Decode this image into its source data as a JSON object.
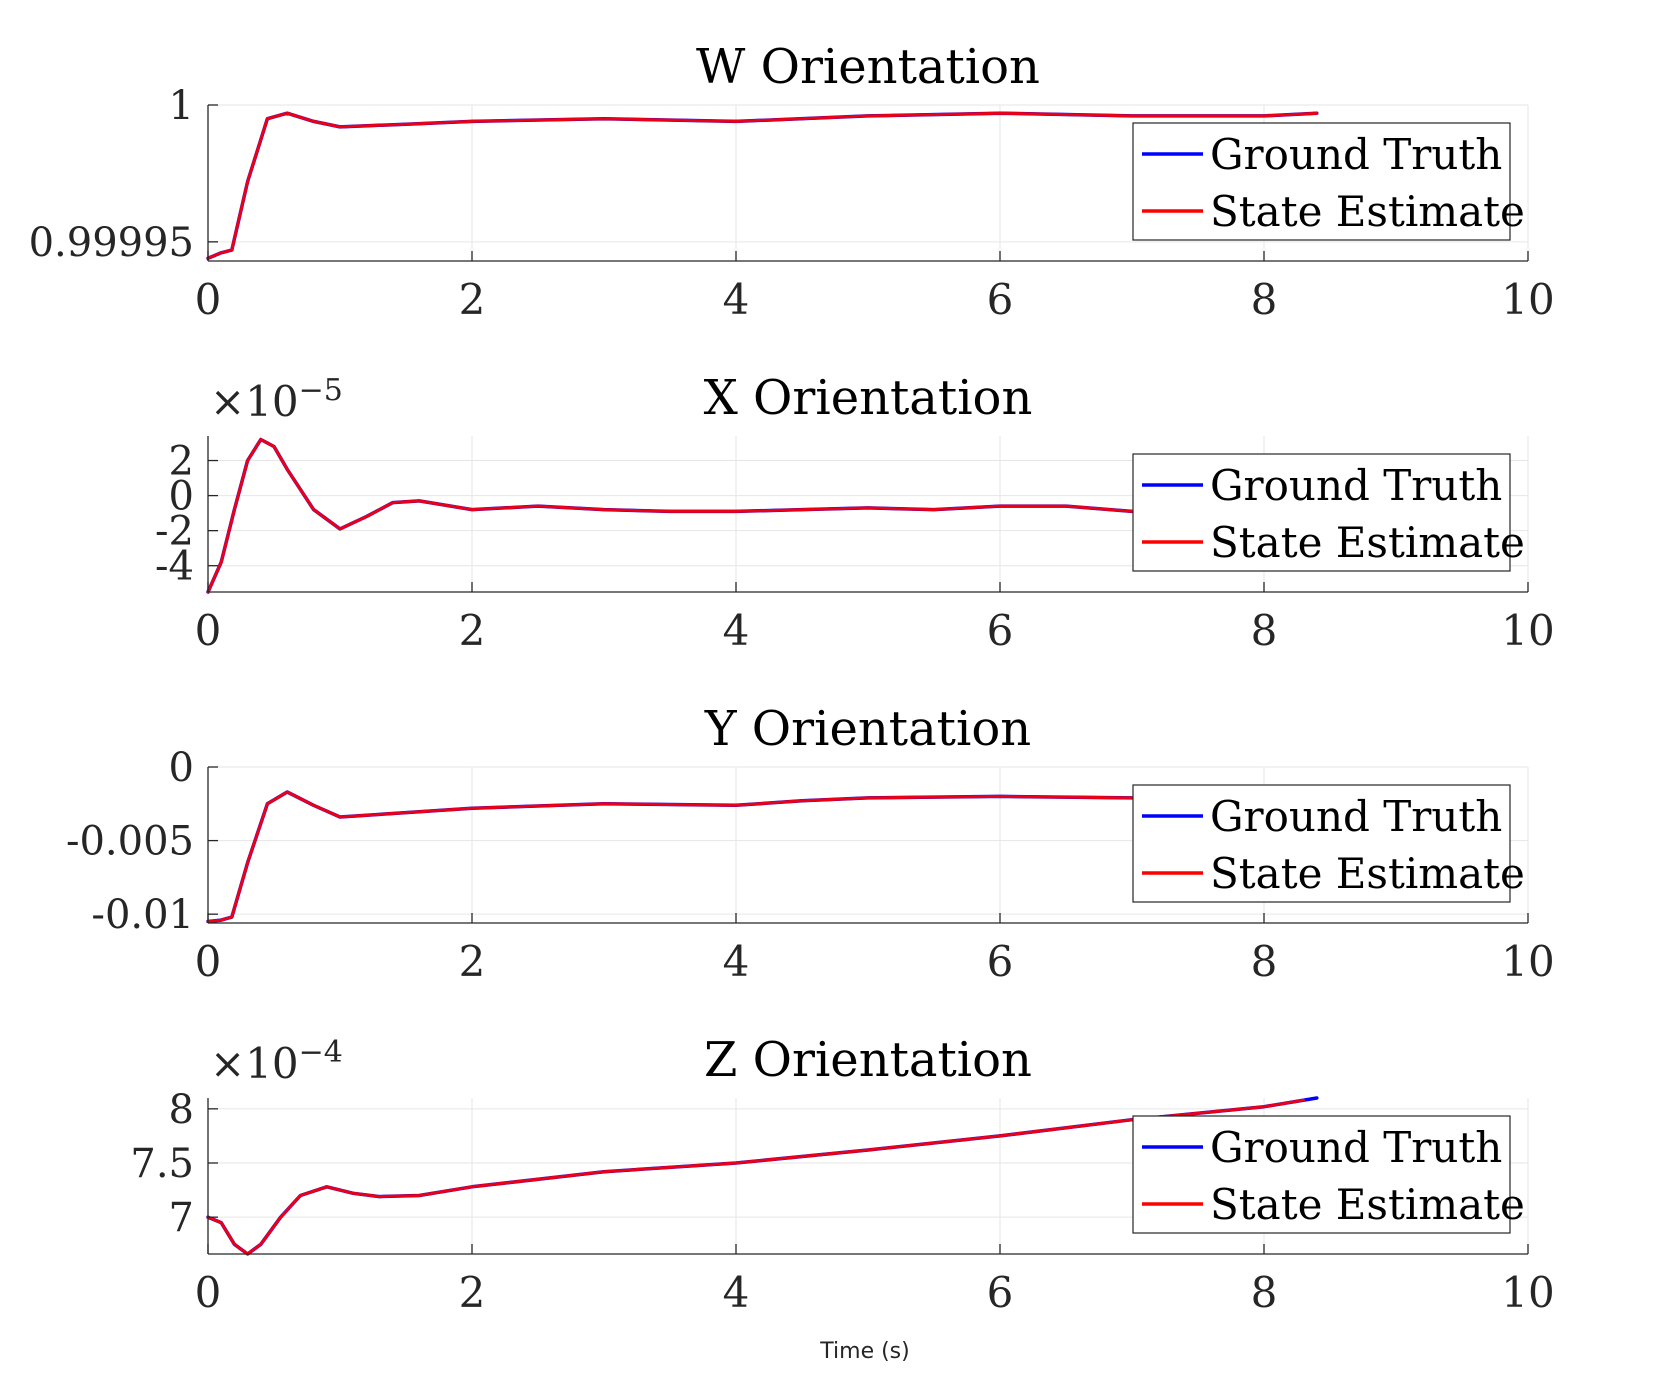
{
  "figure": {
    "xlabel": "Time (s)",
    "colors": {
      "ground_truth": "#0000ff",
      "state_estimate": "#ff0000",
      "axis": "#262626",
      "grid": "#e6e6e6",
      "text": "#262626"
    }
  },
  "chart_data": [
    {
      "type": "line",
      "title": "W Orientation",
      "xlabel": "",
      "ylabel": "",
      "exponent": "",
      "xlim": [
        0,
        10
      ],
      "ylim": [
        0.999943,
        1.0
      ],
      "x_ticks": [
        0,
        2,
        4,
        6,
        8,
        10
      ],
      "x_tick_labels": [
        "0",
        "2",
        "4",
        "6",
        "8",
        "10"
      ],
      "y_ticks": [
        0.99995,
        1.0
      ],
      "y_tick_labels": [
        "0.99995",
        "1"
      ],
      "grid": true,
      "legend_position": "top-right",
      "series": [
        {
          "name": "Ground Truth",
          "color": "#0000ff",
          "x": [
            0,
            0.1,
            0.18,
            0.3,
            0.45,
            0.6,
            0.8,
            1.0,
            1.5,
            2,
            3,
            4,
            5,
            6,
            7,
            8,
            8.4
          ],
          "y": [
            0.999944,
            0.999946,
            0.999947,
            0.999972,
            0.999995,
            0.999997,
            0.999994,
            0.999992,
            0.999993,
            0.999994,
            0.999995,
            0.999994,
            0.999996,
            0.999997,
            0.999996,
            0.999996,
            0.999997
          ]
        },
        {
          "name": "State Estimate",
          "color": "#ff0000",
          "x": [
            0,
            0.1,
            0.18,
            0.3,
            0.45,
            0.6,
            0.8,
            1.0,
            1.5,
            2,
            3,
            4,
            5,
            6,
            7,
            8,
            8.4
          ],
          "y": [
            0.999944,
            0.999946,
            0.999947,
            0.999972,
            0.999995,
            0.999997,
            0.999994,
            0.999992,
            0.999993,
            0.999994,
            0.999995,
            0.999994,
            0.999996,
            0.999997,
            0.999996,
            0.999996,
            0.999997
          ]
        }
      ]
    },
    {
      "type": "line",
      "title": "X Orientation",
      "xlabel": "",
      "ylabel": "",
      "exponent": "-5",
      "xlim": [
        0,
        10
      ],
      "ylim": [
        -5.5,
        3.4
      ],
      "x_ticks": [
        0,
        2,
        4,
        6,
        8,
        10
      ],
      "x_tick_labels": [
        "0",
        "2",
        "4",
        "6",
        "8",
        "10"
      ],
      "y_ticks": [
        -4,
        -2,
        0,
        2
      ],
      "y_tick_labels": [
        "-4",
        "-2",
        "0",
        "2"
      ],
      "grid": true,
      "legend_position": "top-right",
      "series": [
        {
          "name": "Ground Truth",
          "color": "#0000ff",
          "x": [
            0,
            0.1,
            0.2,
            0.3,
            0.4,
            0.5,
            0.6,
            0.8,
            1.0,
            1.2,
            1.4,
            1.6,
            2,
            2.5,
            3,
            3.5,
            4,
            4.5,
            5,
            5.5,
            6,
            6.5,
            7
          ],
          "y": [
            -5.5,
            -3.8,
            -0.8,
            2.0,
            3.2,
            2.8,
            1.5,
            -0.8,
            -1.9,
            -1.2,
            -0.4,
            -0.3,
            -0.8,
            -0.6,
            -0.8,
            -0.9,
            -0.9,
            -0.8,
            -0.7,
            -0.8,
            -0.6,
            -0.6,
            -0.9
          ]
        },
        {
          "name": "State Estimate",
          "color": "#ff0000",
          "x": [
            0,
            0.1,
            0.2,
            0.3,
            0.4,
            0.5,
            0.6,
            0.8,
            1.0,
            1.2,
            1.4,
            1.6,
            2,
            2.5,
            3,
            3.5,
            4,
            4.5,
            5,
            5.5,
            6,
            6.5,
            7
          ],
          "y": [
            -5.5,
            -3.8,
            -0.8,
            2.0,
            3.2,
            2.8,
            1.5,
            -0.8,
            -1.9,
            -1.2,
            -0.4,
            -0.3,
            -0.8,
            -0.6,
            -0.8,
            -0.9,
            -0.9,
            -0.8,
            -0.7,
            -0.8,
            -0.6,
            -0.6,
            -0.9
          ]
        }
      ]
    },
    {
      "type": "line",
      "title": "Y Orientation",
      "xlabel": "",
      "ylabel": "",
      "exponent": "",
      "xlim": [
        0,
        10
      ],
      "ylim": [
        -0.0106,
        0.0
      ],
      "x_ticks": [
        0,
        2,
        4,
        6,
        8,
        10
      ],
      "x_tick_labels": [
        "0",
        "2",
        "4",
        "6",
        "8",
        "10"
      ],
      "y_ticks": [
        -0.01,
        -0.005,
        0
      ],
      "y_tick_labels": [
        "-0.01",
        "-0.005",
        "0"
      ],
      "grid": true,
      "legend_position": "top-right",
      "series": [
        {
          "name": "Ground Truth",
          "color": "#0000ff",
          "x": [
            0,
            0.1,
            0.18,
            0.3,
            0.45,
            0.6,
            0.8,
            1.0,
            1.5,
            2,
            3,
            4,
            4.5,
            5,
            6,
            7
          ],
          "y": [
            -0.0105,
            -0.0104,
            -0.0102,
            -0.0065,
            -0.0025,
            -0.0017,
            -0.0026,
            -0.0034,
            -0.0031,
            -0.0028,
            -0.0025,
            -0.0026,
            -0.0023,
            -0.0021,
            -0.002,
            -0.0021
          ]
        },
        {
          "name": "State Estimate",
          "color": "#ff0000",
          "x": [
            0,
            0.1,
            0.18,
            0.3,
            0.45,
            0.6,
            0.8,
            1.0,
            1.5,
            2,
            3,
            4,
            4.5,
            5,
            6,
            7
          ],
          "y": [
            -0.0105,
            -0.0104,
            -0.0102,
            -0.0065,
            -0.0025,
            -0.0017,
            -0.0026,
            -0.0034,
            -0.0031,
            -0.0028,
            -0.0025,
            -0.0026,
            -0.0023,
            -0.0021,
            -0.002,
            -0.0021
          ]
        }
      ]
    },
    {
      "type": "line",
      "title": "Z Orientation",
      "xlabel": "",
      "ylabel": "",
      "exponent": "-4",
      "xlim": [
        0,
        10
      ],
      "ylim": [
        6.66,
        8.1
      ],
      "x_ticks": [
        0,
        2,
        4,
        6,
        8,
        10
      ],
      "x_tick_labels": [
        "0",
        "2",
        "4",
        "6",
        "8",
        "10"
      ],
      "y_ticks": [
        7,
        7.5,
        8
      ],
      "y_tick_labels": [
        "7",
        "7.5",
        "8"
      ],
      "grid": true,
      "legend_position": "top-right",
      "series": [
        {
          "name": "Ground Truth",
          "color": "#0000ff",
          "x": [
            0,
            0.1,
            0.2,
            0.3,
            0.4,
            0.55,
            0.7,
            0.9,
            1.1,
            1.3,
            1.6,
            2,
            3,
            4,
            5,
            6,
            7,
            8,
            8.4
          ],
          "y": [
            7.0,
            6.95,
            6.75,
            6.66,
            6.75,
            7.0,
            7.2,
            7.28,
            7.22,
            7.19,
            7.2,
            7.28,
            7.42,
            7.5,
            7.62,
            7.75,
            7.9,
            8.02,
            8.1
          ]
        },
        {
          "name": "State Estimate",
          "color": "#ff0000",
          "x": [
            0,
            0.1,
            0.2,
            0.3,
            0.4,
            0.55,
            0.7,
            0.9,
            1.1,
            1.3,
            1.6,
            2,
            3,
            4,
            5,
            6,
            7,
            8,
            8.3
          ],
          "y": [
            7.0,
            6.95,
            6.75,
            6.66,
            6.75,
            7.0,
            7.2,
            7.28,
            7.22,
            7.19,
            7.2,
            7.28,
            7.42,
            7.5,
            7.62,
            7.75,
            7.9,
            8.02,
            8.08
          ]
        }
      ]
    }
  ]
}
